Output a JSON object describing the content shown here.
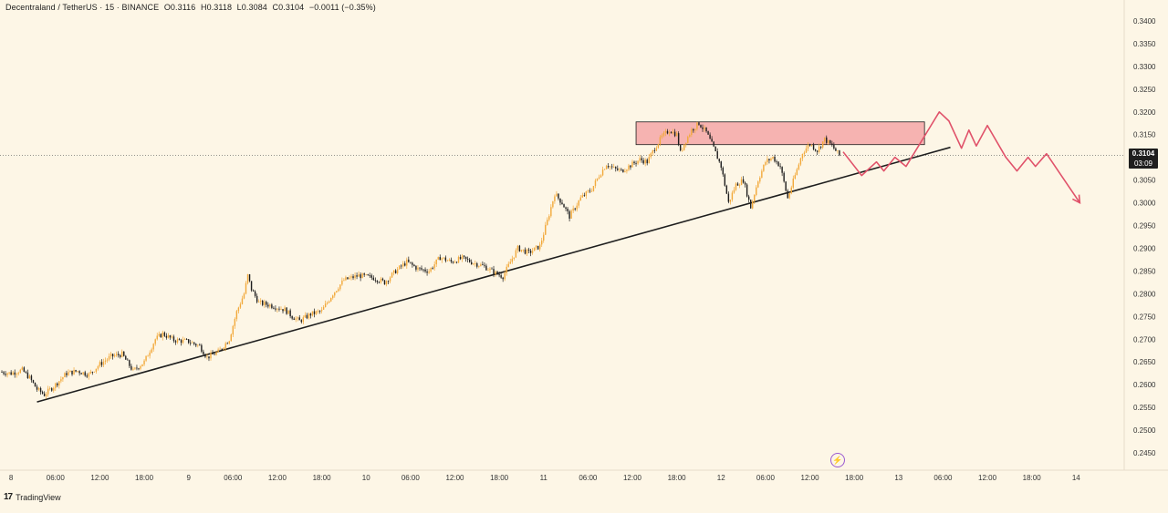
{
  "header": {
    "symbol": "Decentraland / TetherUS · 15 · BINANCE",
    "open": "O0.3116",
    "high": "H0.3118",
    "low": "L0.3084",
    "close": "C0.3104",
    "change": "−0.0011 (−0.35%)"
  },
  "price_tag": {
    "price": "0.3104",
    "countdown": "03:09"
  },
  "branding": {
    "name": "TradingView"
  },
  "colors": {
    "background": "#fdf6e6",
    "up_candle": "#f2a93b",
    "down_candle": "#1e1e1e",
    "zone_fill": "#f5a7a7",
    "projection": "#e0526a",
    "trendline": "#1e1e1e"
  },
  "chart_data": {
    "type": "candlestick",
    "symbol": "MANAUSDT",
    "timeframe": "15",
    "y_axis": {
      "ticks": [
        "0.3400",
        "0.3350",
        "0.3300",
        "0.3250",
        "0.3200",
        "0.3150",
        "0.3100",
        "0.3050",
        "0.3000",
        "0.2950",
        "0.2900",
        "0.2850",
        "0.2800",
        "0.2750",
        "0.2700",
        "0.2650",
        "0.2600",
        "0.2550",
        "0.2500",
        "0.2450"
      ],
      "ylim": [
        0.244,
        0.341
      ]
    },
    "x_axis": {
      "ticks": [
        "8",
        "06:00",
        "12:00",
        "18:00",
        "9",
        "06:00",
        "12:00",
        "18:00",
        "10",
        "06:00",
        "12:00",
        "18:00",
        "11",
        "06:00",
        "12:00",
        "18:00",
        "12",
        "06:00",
        "12:00",
        "18:00",
        "13",
        "06:00",
        "12:00",
        "18:00",
        "14"
      ],
      "xlim_hours": [
        -1.5,
        150.5
      ]
    },
    "price_path": [
      [
        -1.5,
        0.2628
      ],
      [
        0,
        0.2625
      ],
      [
        1.5,
        0.2632
      ],
      [
        2.5,
        0.2615
      ],
      [
        3.5,
        0.259
      ],
      [
        4.5,
        0.2578
      ],
      [
        6,
        0.26
      ],
      [
        7.5,
        0.2625
      ],
      [
        9,
        0.263
      ],
      [
        10.5,
        0.2622
      ],
      [
        12,
        0.2645
      ],
      [
        13.5,
        0.2662
      ],
      [
        15,
        0.2667
      ],
      [
        16.5,
        0.263
      ],
      [
        18,
        0.265
      ],
      [
        19.5,
        0.27
      ],
      [
        20.5,
        0.2712
      ],
      [
        22,
        0.2698
      ],
      [
        24,
        0.2695
      ],
      [
        25.5,
        0.2685
      ],
      [
        26.5,
        0.266
      ],
      [
        28,
        0.2672
      ],
      [
        29.5,
        0.27
      ],
      [
        30.5,
        0.276
      ],
      [
        31.5,
        0.28
      ],
      [
        32,
        0.284
      ],
      [
        32.5,
        0.281
      ],
      [
        33.5,
        0.278
      ],
      [
        35,
        0.2775
      ],
      [
        37,
        0.2765
      ],
      [
        38,
        0.275
      ],
      [
        39,
        0.274
      ],
      [
        40.5,
        0.2755
      ],
      [
        42,
        0.2762
      ],
      [
        43.5,
        0.28
      ],
      [
        45,
        0.283
      ],
      [
        47,
        0.284
      ],
      [
        49,
        0.2835
      ],
      [
        50.5,
        0.2825
      ],
      [
        52,
        0.285
      ],
      [
        53.5,
        0.287
      ],
      [
        55,
        0.2855
      ],
      [
        56.5,
        0.285
      ],
      [
        58,
        0.288
      ],
      [
        59.5,
        0.287
      ],
      [
        61,
        0.2878
      ],
      [
        62.5,
        0.2868
      ],
      [
        64,
        0.286
      ],
      [
        65.5,
        0.2845
      ],
      [
        66.5,
        0.2838
      ],
      [
        67.5,
        0.287
      ],
      [
        68.5,
        0.29
      ],
      [
        70,
        0.289
      ],
      [
        71.5,
        0.2905
      ],
      [
        72.5,
        0.296
      ],
      [
        73.5,
        0.302
      ],
      [
        74.5,
        0.3
      ],
      [
        75.5,
        0.297
      ],
      [
        77,
        0.301
      ],
      [
        78.5,
        0.303
      ],
      [
        79.5,
        0.306
      ],
      [
        80.5,
        0.3085
      ],
      [
        81.5,
        0.3075
      ],
      [
        82.5,
        0.307
      ],
      [
        84,
        0.3085
      ],
      [
        85,
        0.3095
      ],
      [
        86,
        0.309
      ],
      [
        87,
        0.312
      ],
      [
        88,
        0.3145
      ],
      [
        89,
        0.316
      ],
      [
        90,
        0.315
      ],
      [
        90.5,
        0.311
      ],
      [
        91,
        0.313
      ],
      [
        92,
        0.316
      ],
      [
        93,
        0.3175
      ],
      [
        94,
        0.3155
      ],
      [
        95,
        0.312
      ],
      [
        96,
        0.308
      ],
      [
        97,
        0.3
      ],
      [
        98,
        0.304
      ],
      [
        99,
        0.305
      ],
      [
        100,
        0.299
      ],
      [
        101,
        0.305
      ],
      [
        102,
        0.309
      ],
      [
        103,
        0.31
      ],
      [
        104,
        0.308
      ],
      [
        105,
        0.301
      ],
      [
        106,
        0.306
      ],
      [
        107,
        0.311
      ],
      [
        108,
        0.313
      ],
      [
        109,
        0.3115
      ],
      [
        110,
        0.314
      ],
      [
        111,
        0.3125
      ],
      [
        112,
        0.3104
      ]
    ],
    "resistance_zone": {
      "x_hours": [
        84.5,
        123.5
      ],
      "y": [
        0.3128,
        0.3178
      ]
    },
    "trendline": [
      [
        3.5,
        0.2562
      ],
      [
        127,
        0.3122
      ]
    ],
    "projection_path": [
      [
        112.5,
        0.3112
      ],
      [
        115,
        0.306
      ],
      [
        117,
        0.309
      ],
      [
        118,
        0.307
      ],
      [
        119.5,
        0.31
      ],
      [
        121,
        0.308
      ],
      [
        124,
        0.316
      ],
      [
        125.5,
        0.32
      ],
      [
        126.8,
        0.318
      ],
      [
        128.5,
        0.312
      ],
      [
        129.5,
        0.316
      ],
      [
        130.5,
        0.3125
      ],
      [
        132,
        0.317
      ],
      [
        134.5,
        0.31
      ],
      [
        136,
        0.307
      ],
      [
        137.5,
        0.31
      ],
      [
        138.5,
        0.308
      ],
      [
        140,
        0.3108
      ],
      [
        142,
        0.306
      ],
      [
        144.5,
        0.3
      ]
    ],
    "current_price": 0.3104,
    "current_price_label": "0.3104",
    "countdown": "03:09",
    "annotations": [
      "resistance-zone",
      "ascending-trendline",
      "projected-path"
    ],
    "grid": false,
    "legend": "none"
  }
}
